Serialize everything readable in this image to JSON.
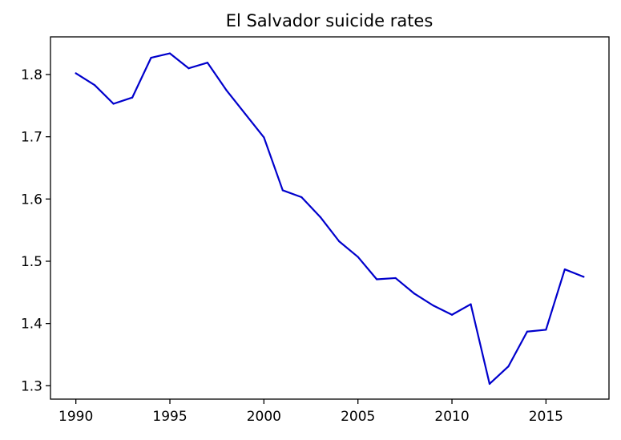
{
  "chart_data": {
    "type": "line",
    "title": "El Salvador suicide rates",
    "xlabel": "",
    "ylabel": "",
    "x": [
      1990,
      1991,
      1992,
      1993,
      1994,
      1995,
      1996,
      1997,
      1998,
      1999,
      2000,
      2001,
      2002,
      2003,
      2004,
      2005,
      2006,
      2007,
      2008,
      2009,
      2010,
      2011,
      2012,
      2013,
      2014,
      2015,
      2016,
      2017
    ],
    "series": [
      {
        "color": "#0000cc",
        "values": [
          1.802,
          1.783,
          1.753,
          1.763,
          1.827,
          1.834,
          1.81,
          1.819,
          1.775,
          1.737,
          1.699,
          1.614,
          1.603,
          1.571,
          1.532,
          1.507,
          1.471,
          1.473,
          1.448,
          1.429,
          1.414,
          1.431,
          1.303,
          1.331,
          1.387,
          1.39,
          1.487,
          1.475
        ]
      }
    ],
    "xlim": [
      1988.65,
      1018.35
    ],
    "ylim": [
      1.2785,
      1.8605
    ],
    "xticks": [
      "1990",
      "1995",
      "2000",
      "2005",
      "2010",
      "2015"
    ],
    "yticks": [
      "1.3",
      "1.4",
      "1.5",
      "1.6",
      "1.7",
      "1.8"
    ],
    "grid": false
  }
}
